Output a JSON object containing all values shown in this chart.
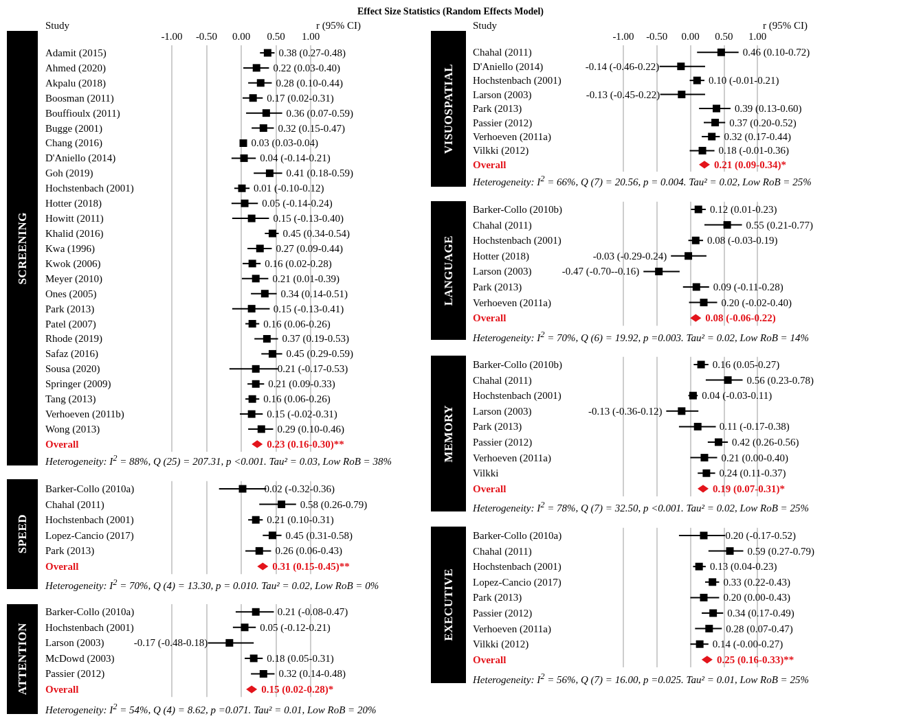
{
  "chart_data": [
    {
      "type": "other",
      "title": "Effect Size Statistics (Random Effects Model)"
    },
    {
      "type": "scatter",
      "orientation": "horizontal",
      "ylabel": "SCREENING",
      "xlim": [
        -1,
        1
      ],
      "xticks": [
        {
          "value": -1,
          "label": "-1.00"
        },
        {
          "value": -0.5,
          "label": "-0.50"
        },
        {
          "value": 0,
          "label": "0.00"
        },
        {
          "value": 0.5,
          "label": "0.50"
        },
        {
          "value": 1,
          "label": "1.00"
        }
      ],
      "grid": true,
      "categories": [
        "Adamit (2015)",
        "Ahmed (2020)",
        "Akpalu (2018)",
        "Boosman (2011)",
        "Bouffioulx (2011)",
        "Bugge (2001)",
        "Chang (2016)",
        "D'Aniello (2014)",
        "Goh (2019)",
        "Hochstenbach (2001)",
        "Hotter (2018)",
        "Howitt (2011)",
        "Khalid (2016)",
        "Kwa (1996)",
        "Kwok (2006)",
        "Meyer (2010)",
        "Ones (2005)",
        "Park (2013)",
        "Patel (2007)",
        "Rhode (2019)",
        "Safaz (2016)",
        "Sousa (2020)",
        "Springer (2009)",
        "Tang (2013)",
        "Verhoeven (2011b)",
        "Wong (2013)",
        "Overall"
      ],
      "series": [
        {
          "color": "#000000",
          "marker": "square",
          "values": [
            0.38,
            0.22,
            0.28,
            0.17,
            0.36,
            0.32,
            0.03,
            0.04,
            0.41,
            0.01,
            0.05,
            0.15,
            0.45,
            0.27,
            0.16,
            0.21,
            0.34,
            0.15,
            0.16,
            0.37,
            0.45,
            0.21,
            0.21,
            0.16,
            0.15,
            0.29,
            null
          ],
          "errors": [
            [
              0.27,
              0.48
            ],
            [
              0.03,
              0.4
            ],
            [
              0.1,
              0.44
            ],
            [
              0.02,
              0.31
            ],
            [
              0.07,
              0.59
            ],
            [
              0.15,
              0.47
            ],
            null,
            [
              -0.14,
              0.21
            ],
            [
              0.18,
              0.59
            ],
            [
              -0.1,
              0.12
            ],
            [
              -0.14,
              0.24
            ],
            [
              -0.13,
              0.4
            ],
            [
              0.34,
              0.54
            ],
            [
              0.09,
              0.44
            ],
            [
              0.02,
              0.28
            ],
            [
              0.01,
              0.39
            ],
            [
              0.14,
              0.51
            ],
            [
              -0.13,
              0.41
            ],
            [
              0.06,
              0.26
            ],
            [
              0.19,
              0.53
            ],
            [
              0.29,
              0.59
            ],
            [
              -0.17,
              0.53
            ],
            [
              0.09,
              0.33
            ],
            [
              0.06,
              0.26
            ],
            [
              -0.02,
              0.31
            ],
            [
              0.1,
              0.46
            ],
            null
          ],
          "value_labels": [
            "0.38 (0.27-0.48)",
            "0.22 (0.03-0.40)",
            "0.28 (0.10-0.44)",
            "0.17 (0.02-0.31)",
            "0.36 (0.07-0.59)",
            "0.32 (0.15-0.47)",
            "0.03 (0.03-0.04)",
            "0.04 (-0.14-0.21)",
            "0.41 (0.18-0.59)",
            "0.01 (-0.10-0.12)",
            "0.05 (-0.14-0.24)",
            "0.15 (-0.13-0.40)",
            "0.45 (0.34-0.54)",
            "0.27 (0.09-0.44)",
            "0.16 (0.02-0.28)",
            "0.21 (0.01-0.39)",
            "0.34 (0.14-0.51)",
            "0.15 (-0.13-0.41)",
            "0.16 (0.06-0.26)",
            "0.37 (0.19-0.53)",
            "0.45 (0.29-0.59)",
            "0.21 (-0.17-0.53)",
            "0.21 (0.09-0.33)",
            "0.16 (0.06-0.26)",
            "0.15 (-0.02-0.31)",
            "0.29 (0.10-0.46)",
            null
          ]
        },
        {
          "color": "#e3141b",
          "marker": "diamond",
          "values": [
            null,
            null,
            null,
            null,
            null,
            null,
            null,
            null,
            null,
            null,
            null,
            null,
            null,
            null,
            null,
            null,
            null,
            null,
            null,
            null,
            null,
            null,
            null,
            null,
            null,
            null,
            0.23
          ],
          "value_labels": [
            null,
            null,
            null,
            null,
            null,
            null,
            null,
            null,
            null,
            null,
            null,
            null,
            null,
            null,
            null,
            null,
            null,
            null,
            null,
            null,
            null,
            null,
            null,
            null,
            null,
            null,
            "0.23 (0.16-0.30)**"
          ]
        }
      ],
      "annotations": [
        "Study",
        "r (95% CI)",
        "Heterogeneity: I$^{2}$ = 88%, Q (25) = 207.31, p <0.001. Tau² = 0.03, Low RoB = 38%"
      ]
    },
    {
      "type": "scatter",
      "orientation": "horizontal",
      "ylabel": "SPEED",
      "xlim": [
        -1,
        1
      ],
      "xticks": [
        -1,
        -0.5,
        0,
        0.5,
        1
      ],
      "grid": true,
      "tick_labels": "y",
      "categories": [
        "Barker-Collo (2010a)",
        "Chahal (2011)",
        "Hochstenbach (2001)",
        "Lopez-Cancio (2017)",
        "Park (2013)",
        "Overall"
      ],
      "series": [
        {
          "color": "#000000",
          "marker": "square",
          "values": [
            0.02,
            0.58,
            0.21,
            0.45,
            0.26,
            null
          ],
          "errors": [
            [
              -0.32,
              0.36
            ],
            [
              0.26,
              0.79
            ],
            [
              0.1,
              0.31
            ],
            [
              0.31,
              0.58
            ],
            [
              0.06,
              0.43
            ],
            null
          ],
          "value_labels": [
            "0.02 (-0.32-0.36)",
            "0.58 (0.26-0.79)",
            "0.21 (0.10-0.31)",
            "0.45 (0.31-0.58)",
            "0.26 (0.06-0.43)",
            null
          ]
        },
        {
          "color": "#e3141b",
          "marker": "diamond",
          "values": [
            null,
            null,
            null,
            null,
            null,
            0.31
          ],
          "value_labels": [
            null,
            null,
            null,
            null,
            null,
            "0.31 (0.15-0.45)**"
          ]
        }
      ],
      "annotations": [
        "Heterogeneity: I$^{2}$ = 70%, Q (4) = 13.30, p = 0.010. Tau² = 0.02, Low RoB = 0%"
      ]
    },
    {
      "type": "scatter",
      "orientation": "horizontal",
      "ylabel": "ATTENTION",
      "xlim": [
        -1,
        1
      ],
      "xticks": [
        -1,
        -0.5,
        0,
        0.5,
        1
      ],
      "grid": true,
      "tick_labels": "y",
      "categories": [
        "Barker-Collo (2010a)",
        "Hochstenbach (2001)",
        "Larson (2003)",
        "McDowd (2003)",
        "Passier (2012)",
        "Overall"
      ],
      "series": [
        {
          "color": "#000000",
          "marker": "square",
          "values": [
            0.21,
            0.05,
            -0.17,
            0.18,
            0.32,
            null
          ],
          "errors": [
            [
              -0.08,
              0.47
            ],
            [
              -0.12,
              0.21
            ],
            [
              -0.48,
              0.18
            ],
            [
              0.05,
              0.31
            ],
            [
              0.14,
              0.48
            ],
            null
          ],
          "value_labels": [
            "0.21 (-0.08-0.47)",
            "0.05 (-0.12-0.21)",
            "-0.17 (-0.48-0.18)",
            "0.18 (0.05-0.31)",
            "0.32 (0.14-0.48)",
            null
          ]
        },
        {
          "color": "#e3141b",
          "marker": "diamond",
          "values": [
            null,
            null,
            null,
            null,
            null,
            0.15
          ],
          "value_labels": [
            null,
            null,
            null,
            null,
            null,
            "0.15 (0.02-0.28)*"
          ]
        }
      ],
      "annotations": [
        "Heterogeneity: I$^{2}$ = 54%, Q (4) = 8.62, p =0.071. Tau² = 0.01, Low RoB = 20%"
      ]
    },
    {
      "type": "scatter",
      "orientation": "horizontal",
      "ylabel": "VISUOSPATIAL",
      "xlim": [
        -1,
        1
      ],
      "xticks": [
        {
          "value": -1,
          "label": "-1.00"
        },
        {
          "value": -0.5,
          "label": "-0.50"
        },
        {
          "value": 0,
          "label": "0.00"
        },
        {
          "value": 0.5,
          "label": "0.50"
        },
        {
          "value": 1,
          "label": "1.00"
        }
      ],
      "grid": true,
      "categories": [
        "Chahal (2011)",
        "D'Aniello (2014)",
        "Hochstenbach (2001)",
        "Larson (2003)",
        "Park (2013)",
        "Passier (2012)",
        "Verhoeven (2011a)",
        "Vilkki (2012)",
        "Overall"
      ],
      "series": [
        {
          "color": "#000000",
          "marker": "square",
          "values": [
            0.46,
            -0.14,
            0.1,
            -0.13,
            0.39,
            0.37,
            0.32,
            0.18,
            null
          ],
          "errors": [
            [
              0.1,
              0.72
            ],
            [
              -0.46,
              0.22
            ],
            [
              -0.01,
              0.21
            ],
            [
              -0.45,
              0.22
            ],
            [
              0.13,
              0.6
            ],
            [
              0.2,
              0.52
            ],
            [
              0.17,
              0.44
            ],
            [
              -0.01,
              0.36
            ],
            null
          ],
          "value_labels": [
            "0.46 (0.10-0.72)",
            "-0.14 (-0.46-0.22)",
            "0.10 (-0.01-0.21)",
            "-0.13 (-0.45-0.22)",
            "0.39 (0.13-0.60)",
            "0.37 (0.20-0.52)",
            "0.32 (0.17-0.44)",
            "0.18 (-0.01-0.36)",
            null
          ]
        },
        {
          "color": "#e3141b",
          "marker": "diamond",
          "values": [
            null,
            null,
            null,
            null,
            null,
            null,
            null,
            null,
            0.21
          ],
          "value_labels": [
            null,
            null,
            null,
            null,
            null,
            null,
            null,
            null,
            "0.21 (0.09-0.34)*"
          ]
        }
      ],
      "annotations": [
        "Study",
        "r (95% CI)",
        "Heterogeneity: I$^{2}$ = 66%, Q (7) = 20.56, p = 0.004. Tau² = 0.02, Low RoB = 25%"
      ]
    },
    {
      "type": "scatter",
      "orientation": "horizontal",
      "ylabel": "LANGUAGE",
      "xlim": [
        -1,
        1
      ],
      "xticks": [
        -1,
        -0.5,
        0,
        0.5,
        1
      ],
      "grid": true,
      "tick_labels": "y",
      "categories": [
        "Barker-Collo (2010b)",
        "Chahal (2011)",
        "Hochstenbach (2001)",
        "Hotter (2018)",
        "Larson (2003)",
        "Park (2013)",
        "Verhoeven (2011a)",
        "Overall"
      ],
      "series": [
        {
          "color": "#000000",
          "marker": "square",
          "values": [
            0.12,
            0.55,
            0.08,
            -0.03,
            -0.47,
            0.09,
            0.2,
            null
          ],
          "errors": [
            [
              0.01,
              0.23
            ],
            [
              0.21,
              0.77
            ],
            [
              -0.03,
              0.19
            ],
            [
              -0.29,
              0.24
            ],
            [
              -0.7,
              -0.16
            ],
            [
              -0.11,
              0.28
            ],
            [
              -0.02,
              0.4
            ],
            null
          ],
          "value_labels": [
            "0.12 (0.01-0.23)",
            "0.55 (0.21-0.77)",
            "0.08 (-0.03-0.19)",
            "-0.03 (-0.29-0.24)",
            "-0.47 (-0.70--0.16)",
            "0.09 (-0.11-0.28)",
            "0.20 (-0.02-0.40)",
            null
          ]
        },
        {
          "color": "#e3141b",
          "marker": "diamond",
          "values": [
            null,
            null,
            null,
            null,
            null,
            null,
            null,
            0.08
          ],
          "value_labels": [
            null,
            null,
            null,
            null,
            null,
            null,
            null,
            "0.08 (-0.06-0.22)"
          ]
        }
      ],
      "annotations": [
        "Heterogeneity: I$^{2}$ = 70%, Q (6) = 19.92, p =0.003. Tau² = 0.02, Low RoB = 14%"
      ]
    },
    {
      "type": "scatter",
      "orientation": "horizontal",
      "ylabel": "MEMORY",
      "xlim": [
        -1,
        1
      ],
      "xticks": [
        -1,
        -0.5,
        0,
        0.5,
        1
      ],
      "grid": true,
      "tick_labels": "y",
      "categories": [
        "Barker-Collo (2010b)",
        "Chahal (2011)",
        "Hochstenbach (2001)",
        "Larson (2003)",
        "Park (2013)",
        "Passier (2012)",
        "Verhoeven (2011a)",
        "Vilkki",
        "Overall"
      ],
      "series": [
        {
          "color": "#000000",
          "marker": "square",
          "values": [
            0.16,
            0.56,
            0.04,
            -0.13,
            0.11,
            0.42,
            0.21,
            0.24,
            null
          ],
          "errors": [
            [
              0.05,
              0.27
            ],
            [
              0.23,
              0.78
            ],
            [
              -0.03,
              0.11
            ],
            [
              -0.36,
              0.12
            ],
            [
              -0.17,
              0.38
            ],
            [
              0.26,
              0.56
            ],
            [
              0.0,
              0.4
            ],
            [
              0.11,
              0.37
            ],
            null
          ],
          "value_labels": [
            "0.16 (0.05-0.27)",
            "0.56 (0.23-0.78)",
            "0.04 (-0.03-0.11)",
            "-0.13 (-0.36-0.12)",
            "0.11 (-0.17-0.38)",
            "0.42 (0.26-0.56)",
            "0.21 (0.00-0.40)",
            "0.24 (0.11-0.37)",
            null
          ]
        },
        {
          "color": "#e3141b",
          "marker": "diamond",
          "values": [
            null,
            null,
            null,
            null,
            null,
            null,
            null,
            null,
            0.19
          ],
          "value_labels": [
            null,
            null,
            null,
            null,
            null,
            null,
            null,
            null,
            "0.19 (0.07-0.31)*"
          ]
        }
      ],
      "annotations": [
        "Heterogeneity: I$^{2}$ = 78%, Q (7) = 32.50, p <0.001. Tau² = 0.02, Low RoB = 25%"
      ]
    },
    {
      "type": "scatter",
      "orientation": "horizontal",
      "ylabel": "EXECUTIVE",
      "xlim": [
        -1,
        1
      ],
      "xticks": [
        -1,
        -0.5,
        0,
        0.5,
        1
      ],
      "grid": true,
      "tick_labels": "y",
      "categories": [
        "Barker-Collo (2010a)",
        "Chahal (2011)",
        "Hochstenbach (2001)",
        "Lopez-Cancio (2017)",
        "Park (2013)",
        "Passier (2012)",
        "Verhoeven (2011a)",
        "Vilkki (2012)",
        "Overall"
      ],
      "series": [
        {
          "color": "#000000",
          "marker": "square",
          "values": [
            0.2,
            0.59,
            0.13,
            0.33,
            0.2,
            0.34,
            0.28,
            0.14,
            null
          ],
          "errors": [
            [
              -0.17,
              0.52
            ],
            [
              0.27,
              0.79
            ],
            [
              0.04,
              0.23
            ],
            [
              0.22,
              0.43
            ],
            [
              0.0,
              0.43
            ],
            [
              0.17,
              0.49
            ],
            [
              0.07,
              0.47
            ],
            [
              0.0,
              0.27
            ],
            null
          ],
          "value_labels": [
            "0.20 (-0.17-0.52)",
            "0.59 (0.27-0.79)",
            "0.13 (0.04-0.23)",
            "0.33 (0.22-0.43)",
            "0.20 (0.00-0.43)",
            "0.34 (0.17-0.49)",
            "0.28 (0.07-0.47)",
            "0.14 (-0.00-0.27)",
            null
          ]
        },
        {
          "color": "#e3141b",
          "marker": "diamond",
          "values": [
            null,
            null,
            null,
            null,
            null,
            null,
            null,
            null,
            0.25
          ],
          "value_labels": [
            null,
            null,
            null,
            null,
            null,
            null,
            null,
            null,
            "0.25 (0.16-0.33)**"
          ]
        }
      ],
      "annotations": [
        "Heterogeneity: I$^{2}$ = 56%, Q (7) = 16.00, p =0.025. Tau² = 0.01, Low RoB = 25%"
      ]
    }
  ]
}
